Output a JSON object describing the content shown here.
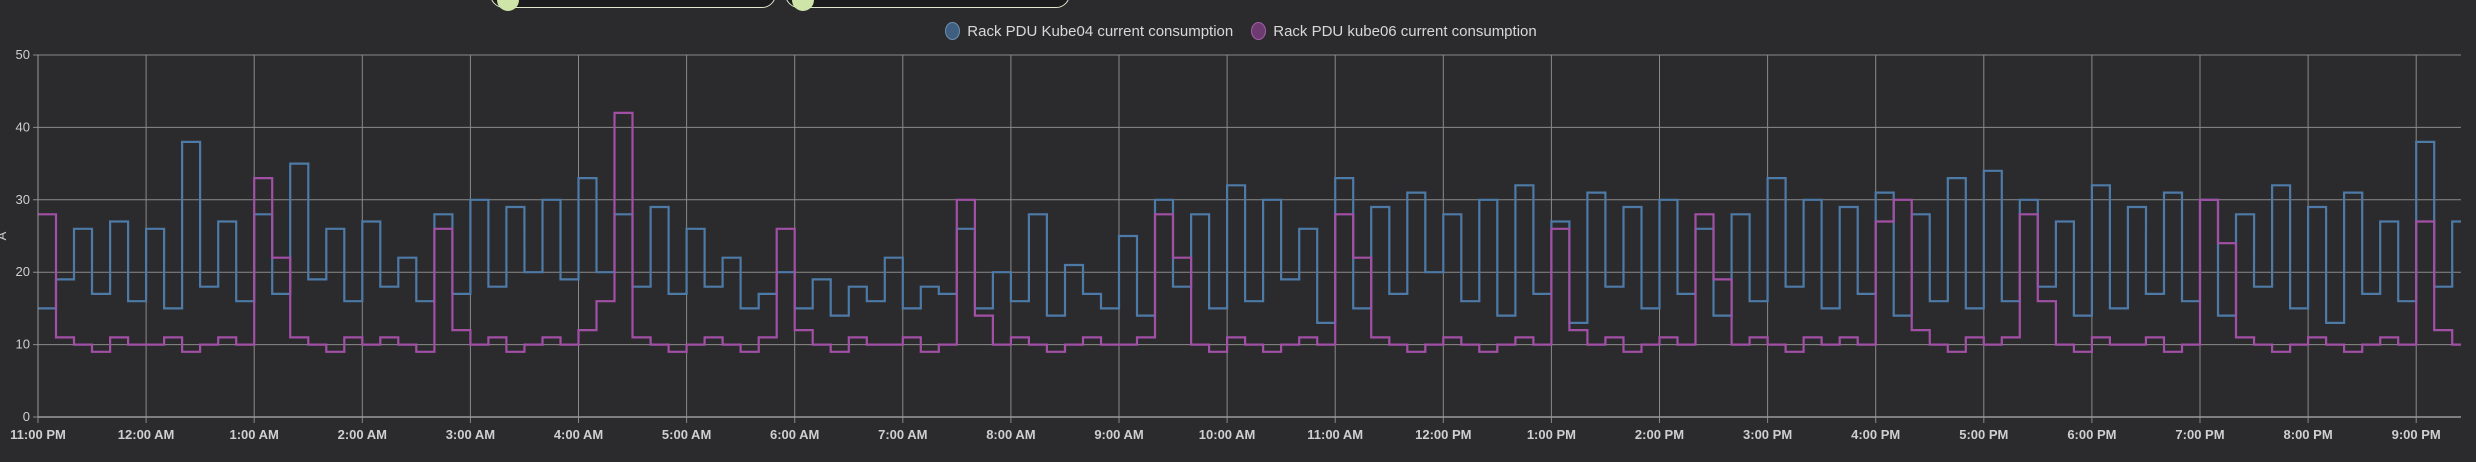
{
  "chart_data": {
    "type": "line",
    "step": true,
    "title": "",
    "xlabel": "",
    "ylabel": "A",
    "ylim": [
      0,
      50
    ],
    "yticks": [
      0,
      10,
      20,
      30,
      40,
      50
    ],
    "x_start": "11:00 PM",
    "x_interval_minutes": 10,
    "xticks": [
      "11:00 PM",
      "12:00 AM",
      "1:00 AM",
      "2:00 AM",
      "3:00 AM",
      "4:00 AM",
      "5:00 AM",
      "6:00 AM",
      "7:00 AM",
      "8:00 AM",
      "9:00 AM",
      "10:00 AM",
      "11:00 AM",
      "12:00 PM",
      "1:00 PM",
      "2:00 PM",
      "3:00 PM",
      "4:00 PM",
      "5:00 PM",
      "6:00 PM",
      "7:00 PM",
      "8:00 PM",
      "9:00 PM"
    ],
    "grid": true,
    "legend_position": "top-center",
    "series": [
      {
        "name": "Rack PDU Kube04 current consumption",
        "color": "#4d7aa6",
        "values": [
          15,
          19,
          26,
          17,
          27,
          16,
          26,
          15,
          38,
          18,
          27,
          16,
          28,
          17,
          35,
          19,
          26,
          16,
          27,
          18,
          22,
          16,
          28,
          17,
          30,
          18,
          29,
          20,
          30,
          19,
          33,
          20,
          28,
          18,
          29,
          17,
          26,
          18,
          22,
          15,
          17,
          20,
          15,
          19,
          14,
          18,
          16,
          22,
          15,
          18,
          17,
          26,
          15,
          20,
          16,
          28,
          14,
          21,
          17,
          15,
          25,
          14,
          30,
          18,
          28,
          15,
          32,
          16,
          30,
          19,
          26,
          13,
          33,
          15,
          29,
          17,
          31,
          20,
          28,
          16,
          30,
          14,
          32,
          17,
          27,
          13,
          31,
          18,
          29,
          15,
          30,
          17,
          26,
          14,
          28,
          16,
          33,
          18,
          30,
          15,
          29,
          17,
          31,
          14,
          28,
          16,
          33,
          15,
          34,
          16,
          30,
          18,
          27,
          14,
          32,
          15,
          29,
          17,
          31,
          16,
          30,
          14,
          28,
          18,
          32,
          15,
          29,
          13,
          31,
          17,
          27,
          16,
          38,
          18,
          27
        ]
      },
      {
        "name": "Rack PDU kube06 current consumption",
        "color": "#a24fa6",
        "values": [
          28,
          11,
          10,
          9,
          11,
          10,
          10,
          11,
          9,
          10,
          11,
          10,
          33,
          22,
          11,
          10,
          9,
          11,
          10,
          11,
          10,
          9,
          26,
          12,
          10,
          11,
          9,
          10,
          11,
          10,
          12,
          16,
          42,
          11,
          10,
          9,
          10,
          11,
          10,
          9,
          11,
          26,
          12,
          10,
          9,
          11,
          10,
          10,
          11,
          9,
          10,
          30,
          14,
          10,
          11,
          10,
          9,
          10,
          11,
          10,
          10,
          11,
          28,
          22,
          10,
          9,
          11,
          10,
          9,
          10,
          11,
          10,
          28,
          22,
          11,
          10,
          9,
          10,
          11,
          10,
          9,
          10,
          11,
          10,
          26,
          12,
          10,
          11,
          9,
          10,
          11,
          10,
          28,
          19,
          10,
          11,
          10,
          9,
          11,
          10,
          11,
          10,
          27,
          30,
          12,
          10,
          9,
          11,
          10,
          11,
          28,
          16,
          10,
          9,
          11,
          10,
          10,
          11,
          9,
          10,
          30,
          24,
          11,
          10,
          9,
          10,
          11,
          10,
          9,
          10,
          11,
          10,
          27,
          12,
          10
        ]
      }
    ]
  }
}
